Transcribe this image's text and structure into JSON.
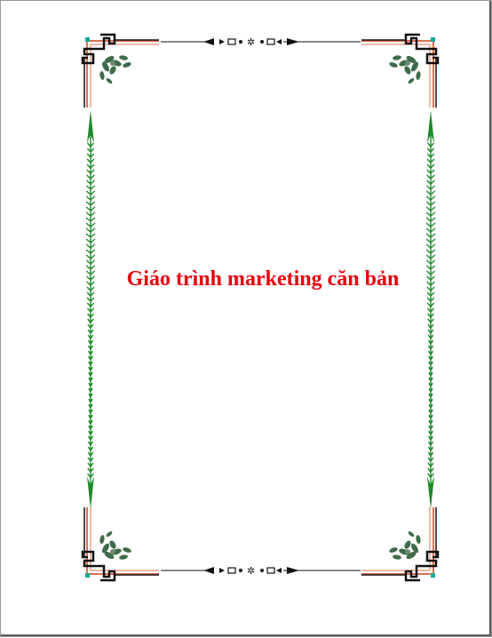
{
  "document": {
    "title": "Giáo trình marketing căn bản"
  },
  "colors": {
    "title": "#e8000b",
    "border_orange": "#e07050",
    "border_black": "#111111",
    "vine_green": "#1e8a2a",
    "leaf_green": "#3f6b4a",
    "corner_teal": "#1aa89a"
  },
  "decorations": {
    "corners": [
      "floral-corner-icon",
      "floral-corner-icon",
      "floral-corner-icon",
      "floral-corner-icon"
    ],
    "top_ornament": "ornament-divider-icon",
    "bottom_ornament": "ornament-divider-icon",
    "side_vines": "vine-border-icon"
  }
}
